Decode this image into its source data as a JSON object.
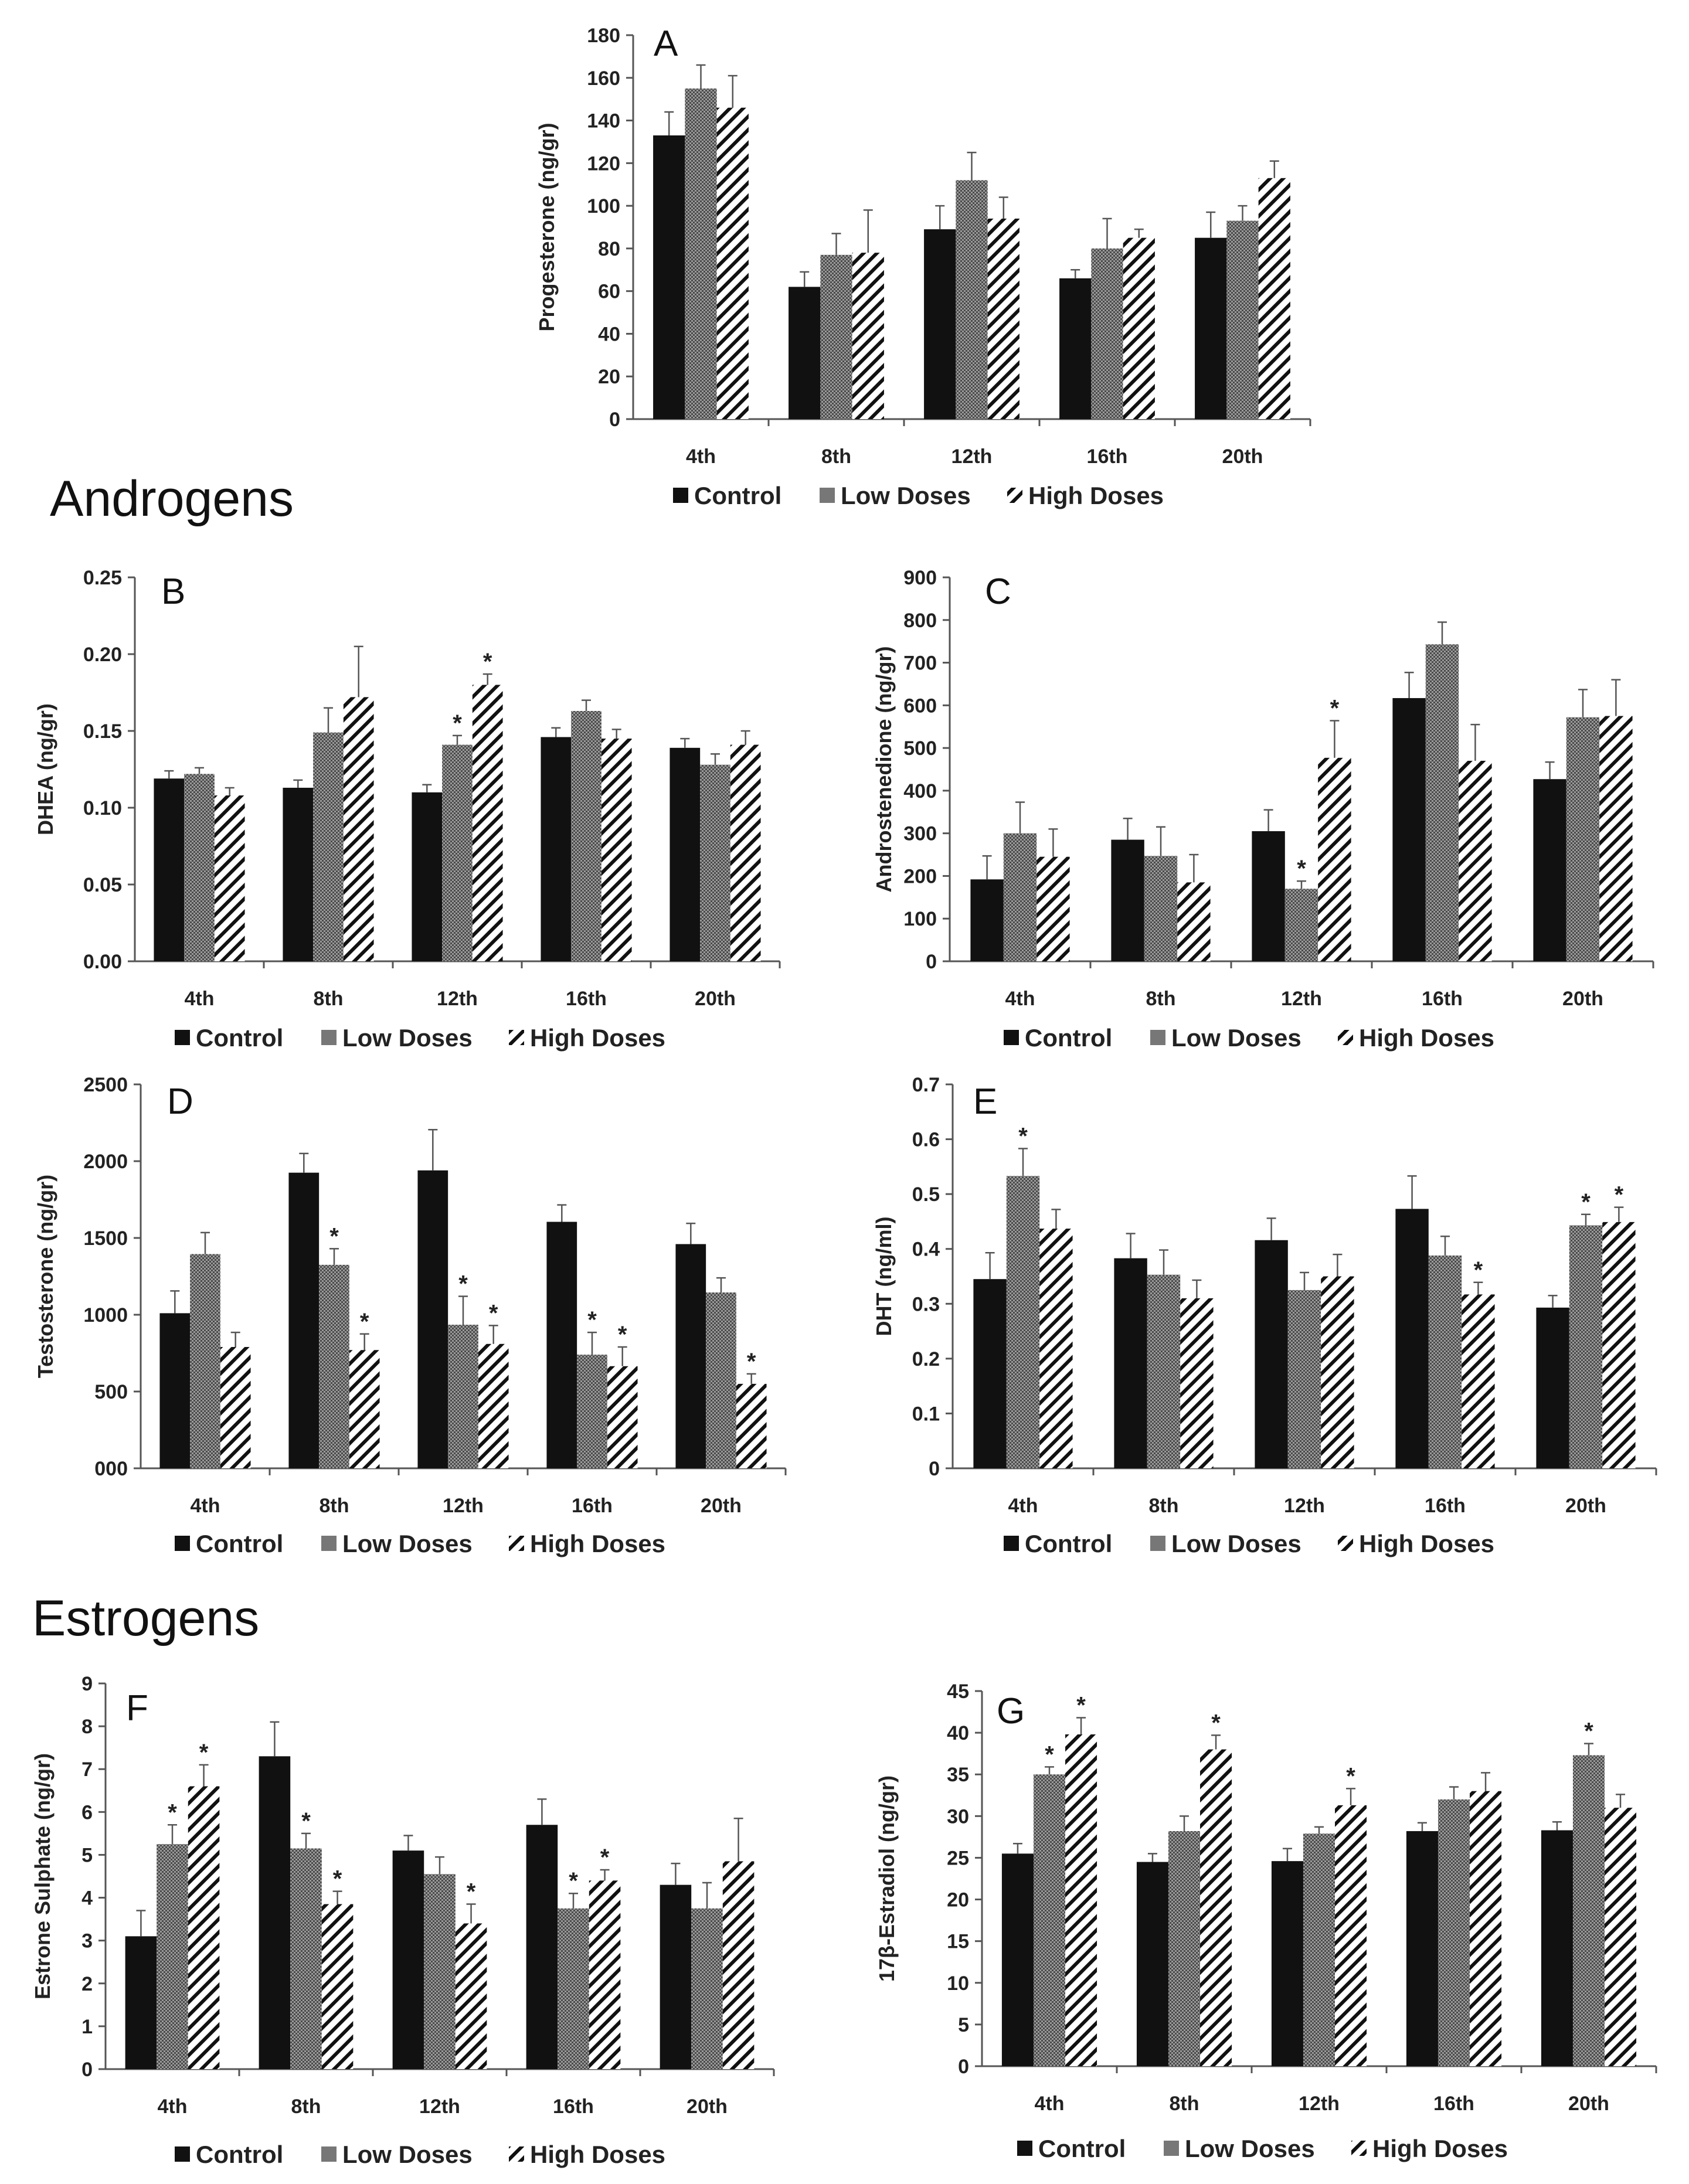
{
  "sections": [
    "Androgens",
    "Estrogens"
  ],
  "legend": [
    {
      "key": "control",
      "label": "Control"
    },
    {
      "key": "low",
      "label": "Low Doses"
    },
    {
      "key": "high",
      "label": "High Doses"
    }
  ],
  "chart_data": [
    {
      "id": "A",
      "type": "bar",
      "title": "A",
      "ylabel": "Progesterone (ng/gr)",
      "categories": [
        "4th",
        "8th",
        "12th",
        "16th",
        "20th"
      ],
      "ylim": [
        0,
        180
      ],
      "yticks": [
        "0",
        "20",
        "40",
        "60",
        "80",
        "100",
        "120",
        "140",
        "160",
        "180"
      ],
      "series": [
        {
          "name": "Control",
          "values": [
            133,
            62,
            89,
            66,
            85
          ],
          "errors": [
            11,
            7,
            11,
            4,
            12
          ],
          "stars": [
            false,
            false,
            false,
            false,
            false
          ]
        },
        {
          "name": "Low Doses",
          "values": [
            155,
            77,
            112,
            80,
            93
          ],
          "errors": [
            11,
            10,
            13,
            14,
            7
          ],
          "stars": [
            false,
            false,
            false,
            false,
            false
          ]
        },
        {
          "name": "High Doses",
          "values": [
            146,
            78,
            94,
            85,
            113
          ],
          "errors": [
            15,
            20,
            10,
            4,
            8
          ],
          "stars": [
            false,
            false,
            false,
            false,
            false
          ]
        }
      ]
    },
    {
      "id": "B",
      "type": "bar",
      "title": "B",
      "ylabel": "DHEA (ng/gr)",
      "categories": [
        "4th",
        "8th",
        "12th",
        "16th",
        "20th"
      ],
      "ylim": [
        0,
        0.25
      ],
      "yticks": [
        "0.00",
        "0.05",
        "0.10",
        "0.15",
        "0.20",
        "0.25"
      ],
      "series": [
        {
          "name": "Control",
          "values": [
            0.119,
            0.113,
            0.11,
            0.146,
            0.139
          ],
          "errors": [
            0.005,
            0.005,
            0.005,
            0.006,
            0.006
          ],
          "stars": [
            false,
            false,
            false,
            false,
            false
          ]
        },
        {
          "name": "Low Doses",
          "values": [
            0.122,
            0.149,
            0.141,
            0.163,
            0.128
          ],
          "errors": [
            0.004,
            0.016,
            0.006,
            0.007,
            0.007
          ],
          "stars": [
            false,
            false,
            true,
            false,
            false
          ]
        },
        {
          "name": "High Doses",
          "values": [
            0.108,
            0.172,
            0.18,
            0.145,
            0.141
          ],
          "errors": [
            0.005,
            0.033,
            0.007,
            0.006,
            0.009
          ],
          "stars": [
            false,
            false,
            true,
            false,
            false
          ]
        }
      ]
    },
    {
      "id": "C",
      "type": "bar",
      "title": "C",
      "ylabel": "Androstenedione (ng/gr)",
      "categories": [
        "4th",
        "8th",
        "12th",
        "16th",
        "20th"
      ],
      "ylim": [
        0,
        900
      ],
      "yticks": [
        "0",
        "100",
        "200",
        "300",
        "400",
        "500",
        "600",
        "700",
        "800",
        "900"
      ],
      "series": [
        {
          "name": "Control",
          "values": [
            192,
            285,
            305,
            617,
            427
          ],
          "errors": [
            55,
            50,
            50,
            60,
            40
          ],
          "stars": [
            false,
            false,
            false,
            false,
            false
          ]
        },
        {
          "name": "Low Doses",
          "values": [
            300,
            247,
            170,
            743,
            572
          ],
          "errors": [
            73,
            68,
            18,
            52,
            65
          ],
          "stars": [
            false,
            false,
            true,
            false,
            false
          ]
        },
        {
          "name": "High Doses",
          "values": [
            245,
            185,
            477,
            470,
            575
          ],
          "errors": [
            65,
            65,
            87,
            85,
            85
          ],
          "stars": [
            false,
            false,
            true,
            false,
            false
          ]
        }
      ]
    },
    {
      "id": "D",
      "type": "bar",
      "title": "D",
      "ylabel": "Testosterone (ng/gr)",
      "categories": [
        "4th",
        "8th",
        "12th",
        "16th",
        "20th"
      ],
      "ylim": [
        0,
        2500
      ],
      "yticks": [
        "000",
        "500",
        "1000",
        "1500",
        "2000",
        "2500"
      ],
      "series": [
        {
          "name": "Control",
          "values": [
            1010,
            1925,
            1940,
            1605,
            1460
          ],
          "errors": [
            145,
            125,
            265,
            110,
            135
          ],
          "stars": [
            false,
            false,
            false,
            false,
            false
          ]
        },
        {
          "name": "Low Doses",
          "values": [
            1395,
            1325,
            935,
            740,
            1145
          ],
          "errors": [
            140,
            105,
            185,
            145,
            95
          ],
          "stars": [
            false,
            true,
            true,
            true,
            false
          ]
        },
        {
          "name": "High Doses",
          "values": [
            790,
            770,
            810,
            665,
            550
          ],
          "errors": [
            95,
            105,
            120,
            125,
            65
          ],
          "stars": [
            false,
            true,
            true,
            true,
            true
          ]
        }
      ]
    },
    {
      "id": "E",
      "type": "bar",
      "title": "E",
      "ylabel": "DHT (ng/ml)",
      "categories": [
        "4th",
        "8th",
        "12th",
        "16th",
        "20th"
      ],
      "ylim": [
        0,
        0.7
      ],
      "yticks": [
        "0",
        "0.1",
        "0.2",
        "0.3",
        "0.4",
        "0.5",
        "0.6",
        "0.7"
      ],
      "series": [
        {
          "name": "Control",
          "values": [
            0.345,
            0.383,
            0.416,
            0.473,
            0.293
          ],
          "errors": [
            0.048,
            0.045,
            0.04,
            0.06,
            0.022
          ],
          "stars": [
            false,
            false,
            false,
            false,
            false
          ]
        },
        {
          "name": "Low Doses",
          "values": [
            0.533,
            0.353,
            0.325,
            0.388,
            0.443
          ],
          "errors": [
            0.05,
            0.045,
            0.032,
            0.035,
            0.02
          ],
          "stars": [
            true,
            false,
            false,
            false,
            true
          ]
        },
        {
          "name": "High Doses",
          "values": [
            0.437,
            0.31,
            0.35,
            0.317,
            0.449
          ],
          "errors": [
            0.035,
            0.033,
            0.04,
            0.022,
            0.027
          ],
          "stars": [
            false,
            false,
            false,
            true,
            true
          ]
        }
      ]
    },
    {
      "id": "F",
      "type": "bar",
      "title": "F",
      "ylabel": "Estrone Sulphate (ng/gr)",
      "categories": [
        "4th",
        "8th",
        "12th",
        "16th",
        "20th"
      ],
      "ylim": [
        0,
        9
      ],
      "yticks": [
        "0",
        "1",
        "2",
        "3",
        "4",
        "5",
        "6",
        "7",
        "8",
        "9"
      ],
      "series": [
        {
          "name": "Control",
          "values": [
            3.1,
            7.3,
            5.1,
            5.7,
            4.3
          ],
          "errors": [
            0.6,
            0.8,
            0.35,
            0.6,
            0.5
          ],
          "stars": [
            false,
            false,
            false,
            false,
            false
          ]
        },
        {
          "name": "Low Doses",
          "values": [
            5.25,
            5.15,
            4.55,
            3.75,
            3.75
          ],
          "errors": [
            0.45,
            0.35,
            0.4,
            0.35,
            0.6
          ],
          "stars": [
            true,
            true,
            false,
            true,
            false
          ]
        },
        {
          "name": "High Doses",
          "values": [
            6.6,
            3.85,
            3.4,
            4.4,
            4.85
          ],
          "errors": [
            0.5,
            0.3,
            0.45,
            0.25,
            1.0
          ],
          "stars": [
            true,
            true,
            true,
            true,
            false
          ]
        }
      ]
    },
    {
      "id": "G",
      "type": "bar",
      "title": "G",
      "ylabel": "17β-Estradiol (ng/gr)",
      "categories": [
        "4th",
        "8th",
        "12th",
        "16th",
        "20th"
      ],
      "ylim": [
        0,
        45
      ],
      "yticks": [
        "0",
        "5",
        "10",
        "15",
        "20",
        "25",
        "30",
        "35",
        "40",
        "45"
      ],
      "series": [
        {
          "name": "Control",
          "values": [
            25.5,
            24.5,
            24.6,
            28.2,
            28.3
          ],
          "errors": [
            1.2,
            1.0,
            1.5,
            1.0,
            1.0
          ],
          "stars": [
            false,
            false,
            false,
            false,
            false
          ]
        },
        {
          "name": "Low Doses",
          "values": [
            35.0,
            28.2,
            27.9,
            32.0,
            37.3
          ],
          "errors": [
            0.9,
            1.8,
            0.8,
            1.5,
            1.4
          ],
          "stars": [
            true,
            false,
            false,
            false,
            true
          ]
        },
        {
          "name": "High Doses",
          "values": [
            39.8,
            38.0,
            31.3,
            33.0,
            31.0
          ],
          "errors": [
            2.0,
            1.7,
            2.0,
            2.2,
            1.6
          ],
          "stars": [
            true,
            true,
            true,
            false,
            false
          ]
        }
      ]
    }
  ]
}
